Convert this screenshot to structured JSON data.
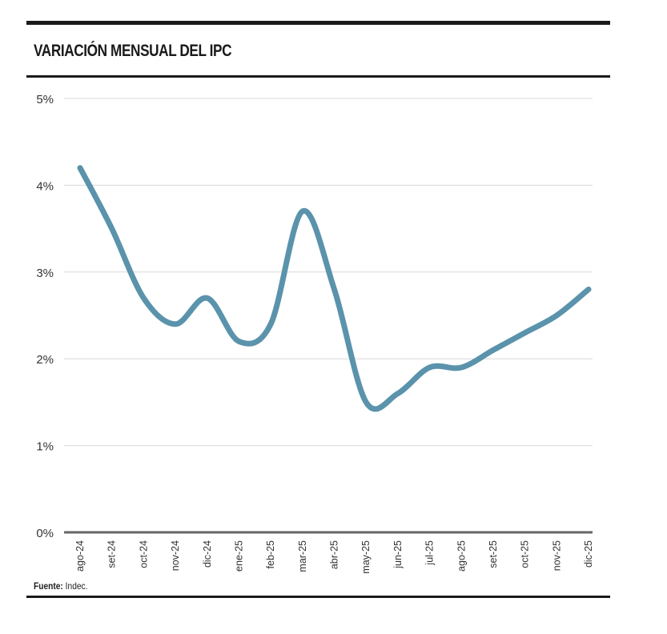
{
  "title": "VARIACIÓN MENSUAL DEL IPC",
  "source": {
    "label": "Fuente:",
    "value": "Indec."
  },
  "colors": {
    "line": "#5a93ab",
    "grid": "#d8d8d8",
    "axis": "#666666",
    "rules": "#1a1a1a"
  },
  "chart_data": {
    "type": "line",
    "title": "VARIACIÓN MENSUAL DEL IPC",
    "categories": [
      "ago-24",
      "set-24",
      "oct-24",
      "nov-24",
      "dic-24",
      "ene-25",
      "feb-25",
      "mar-25",
      "abr-25",
      "may-25",
      "jun-25",
      "jul-25",
      "ago-25",
      "set-25",
      "oct-25",
      "nov-25",
      "dic-25"
    ],
    "values": [
      4.2,
      3.5,
      2.7,
      2.4,
      2.7,
      2.2,
      2.4,
      3.7,
      2.8,
      1.5,
      1.6,
      1.9,
      1.9,
      2.1,
      2.3,
      2.5,
      2.8
    ],
    "y_unit": "%",
    "ylim": [
      0,
      5
    ],
    "yticks": [
      "0%",
      "1%",
      "2%",
      "3%",
      "4%",
      "5%"
    ],
    "grid": true,
    "smooth": true
  }
}
